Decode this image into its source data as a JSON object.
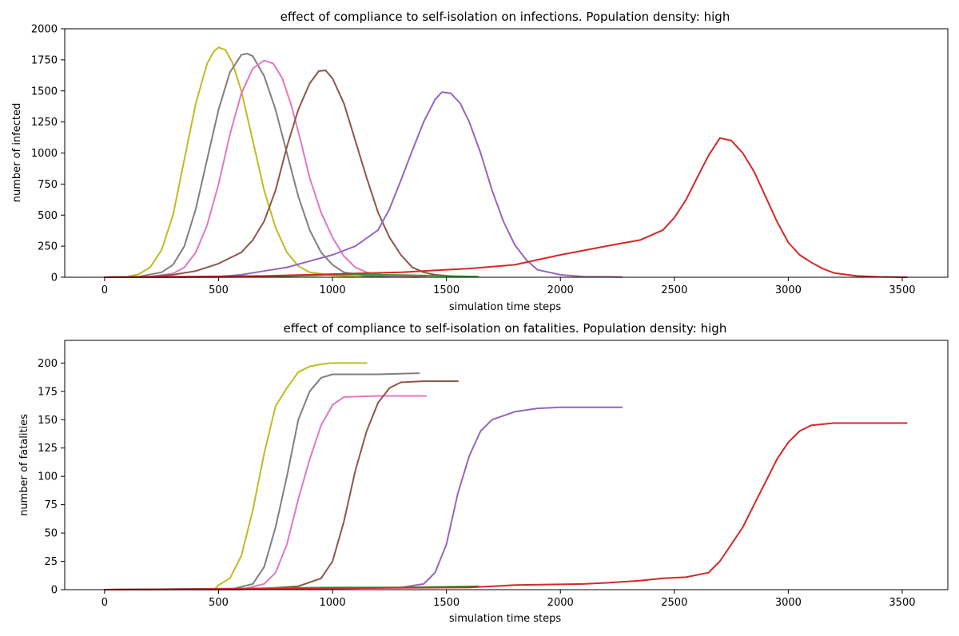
{
  "chart_data": [
    {
      "type": "line",
      "title": "effect of compliance to self-isolation on infections. Population density: high",
      "xlabel": "simulation time steps",
      "ylabel": "number of infected",
      "xlim": [
        -175,
        3700
      ],
      "ylim": [
        0,
        2000
      ],
      "xticks": [
        0,
        500,
        1000,
        1500,
        2000,
        2500,
        3000,
        3500
      ],
      "yticks": [
        0,
        250,
        500,
        750,
        1000,
        1250,
        1500,
        1750,
        2000
      ],
      "grid": false,
      "series": [
        {
          "color": "#bcbd22",
          "points": [
            [
              0,
              0
            ],
            [
              100,
              4
            ],
            [
              150,
              25
            ],
            [
              200,
              80
            ],
            [
              250,
              220
            ],
            [
              300,
              500
            ],
            [
              350,
              950
            ],
            [
              400,
              1400
            ],
            [
              450,
              1720
            ],
            [
              480,
              1820
            ],
            [
              500,
              1850
            ],
            [
              530,
              1830
            ],
            [
              560,
              1730
            ],
            [
              600,
              1500
            ],
            [
              650,
              1100
            ],
            [
              700,
              700
            ],
            [
              750,
              400
            ],
            [
              800,
              200
            ],
            [
              850,
              90
            ],
            [
              900,
              40
            ],
            [
              1000,
              15
            ],
            [
              1100,
              5
            ],
            [
              1150,
              3
            ]
          ]
        },
        {
          "color": "#7f7f7f",
          "points": [
            [
              0,
              0
            ],
            [
              150,
              5
            ],
            [
              250,
              40
            ],
            [
              300,
              100
            ],
            [
              350,
              250
            ],
            [
              400,
              550
            ],
            [
              450,
              950
            ],
            [
              500,
              1350
            ],
            [
              550,
              1650
            ],
            [
              600,
              1790
            ],
            [
              625,
              1800
            ],
            [
              650,
              1780
            ],
            [
              700,
              1620
            ],
            [
              750,
              1350
            ],
            [
              800,
              1000
            ],
            [
              850,
              650
            ],
            [
              900,
              380
            ],
            [
              950,
              200
            ],
            [
              1000,
              100
            ],
            [
              1050,
              40
            ],
            [
              1150,
              10
            ],
            [
              1300,
              3
            ],
            [
              1380,
              2
            ]
          ]
        },
        {
          "color": "#e377c2",
          "points": [
            [
              0,
              0
            ],
            [
              200,
              5
            ],
            [
              300,
              30
            ],
            [
              350,
              80
            ],
            [
              400,
              200
            ],
            [
              450,
              420
            ],
            [
              500,
              750
            ],
            [
              550,
              1150
            ],
            [
              600,
              1480
            ],
            [
              650,
              1680
            ],
            [
              700,
              1745
            ],
            [
              740,
              1720
            ],
            [
              780,
              1600
            ],
            [
              820,
              1380
            ],
            [
              860,
              1100
            ],
            [
              900,
              800
            ],
            [
              950,
              520
            ],
            [
              1000,
              320
            ],
            [
              1050,
              170
            ],
            [
              1100,
              80
            ],
            [
              1150,
              40
            ],
            [
              1250,
              10
            ],
            [
              1410,
              3
            ]
          ]
        },
        {
          "color": "#8c564b",
          "points": [
            [
              0,
              0
            ],
            [
              200,
              5
            ],
            [
              300,
              20
            ],
            [
              400,
              50
            ],
            [
              500,
              110
            ],
            [
              600,
              200
            ],
            [
              650,
              300
            ],
            [
              700,
              450
            ],
            [
              750,
              700
            ],
            [
              800,
              1050
            ],
            [
              850,
              1350
            ],
            [
              900,
              1560
            ],
            [
              940,
              1660
            ],
            [
              970,
              1665
            ],
            [
              1000,
              1600
            ],
            [
              1050,
              1400
            ],
            [
              1100,
              1100
            ],
            [
              1150,
              800
            ],
            [
              1200,
              520
            ],
            [
              1250,
              320
            ],
            [
              1300,
              180
            ],
            [
              1350,
              80
            ],
            [
              1400,
              40
            ],
            [
              1450,
              20
            ],
            [
              1550,
              5
            ]
          ]
        },
        {
          "color": "#9467bd",
          "points": [
            [
              0,
              0
            ],
            [
              400,
              2
            ],
            [
              500,
              5
            ],
            [
              600,
              20
            ],
            [
              700,
              50
            ],
            [
              800,
              80
            ],
            [
              900,
              130
            ],
            [
              1000,
              180
            ],
            [
              1100,
              250
            ],
            [
              1200,
              380
            ],
            [
              1250,
              550
            ],
            [
              1300,
              780
            ],
            [
              1350,
              1020
            ],
            [
              1400,
              1250
            ],
            [
              1450,
              1430
            ],
            [
              1480,
              1490
            ],
            [
              1520,
              1480
            ],
            [
              1560,
              1400
            ],
            [
              1600,
              1250
            ],
            [
              1650,
              1000
            ],
            [
              1700,
              700
            ],
            [
              1750,
              450
            ],
            [
              1800,
              260
            ],
            [
              1850,
              140
            ],
            [
              1900,
              60
            ],
            [
              2000,
              20
            ],
            [
              2100,
              5
            ],
            [
              2270,
              2
            ]
          ]
        },
        {
          "color": "#2ca02c",
          "points": [
            [
              0,
              0
            ],
            [
              500,
              2
            ],
            [
              700,
              5
            ],
            [
              900,
              15
            ],
            [
              1000,
              20
            ],
            [
              1100,
              22
            ],
            [
              1300,
              18
            ],
            [
              1500,
              10
            ],
            [
              1640,
              5
            ]
          ]
        },
        {
          "color": "#d62728",
          "points": [
            [
              0,
              0
            ],
            [
              700,
              10
            ],
            [
              900,
              20
            ],
            [
              1100,
              30
            ],
            [
              1300,
              40
            ],
            [
              1450,
              55
            ],
            [
              1600,
              70
            ],
            [
              1800,
              100
            ],
            [
              2000,
              180
            ],
            [
              2200,
              250
            ],
            [
              2350,
              300
            ],
            [
              2450,
              380
            ],
            [
              2500,
              480
            ],
            [
              2550,
              620
            ],
            [
              2600,
              800
            ],
            [
              2650,
              980
            ],
            [
              2700,
              1120
            ],
            [
              2750,
              1100
            ],
            [
              2800,
              1000
            ],
            [
              2850,
              850
            ],
            [
              2900,
              650
            ],
            [
              2950,
              450
            ],
            [
              3000,
              280
            ],
            [
              3050,
              180
            ],
            [
              3100,
              120
            ],
            [
              3150,
              70
            ],
            [
              3200,
              35
            ],
            [
              3300,
              10
            ],
            [
              3400,
              3
            ],
            [
              3520,
              0
            ]
          ]
        }
      ]
    },
    {
      "type": "line",
      "title": "effect of compliance to self-isolation on fatalities. Population density: high",
      "xlabel": "simulation time steps",
      "ylabel": "number of fatalities",
      "xlim": [
        -175,
        3700
      ],
      "ylim": [
        0,
        220
      ],
      "xticks": [
        0,
        500,
        1000,
        1500,
        2000,
        2500,
        3000,
        3500
      ],
      "yticks": [
        0,
        25,
        50,
        75,
        100,
        125,
        150,
        175,
        200
      ],
      "grid": false,
      "series": [
        {
          "color": "#bcbd22",
          "points": [
            [
              0,
              0
            ],
            [
              480,
              0
            ],
            [
              500,
              4
            ],
            [
              550,
              10
            ],
            [
              600,
              30
            ],
            [
              650,
              70
            ],
            [
              700,
              120
            ],
            [
              750,
              162
            ],
            [
              800,
              178
            ],
            [
              850,
              192
            ],
            [
              900,
              197
            ],
            [
              950,
              199
            ],
            [
              1000,
              200
            ],
            [
              1150,
              200
            ]
          ]
        },
        {
          "color": "#7f7f7f",
          "points": [
            [
              0,
              0
            ],
            [
              550,
              0
            ],
            [
              650,
              5
            ],
            [
              700,
              20
            ],
            [
              750,
              55
            ],
            [
              800,
              100
            ],
            [
              850,
              150
            ],
            [
              900,
              175
            ],
            [
              950,
              187
            ],
            [
              1000,
              190
            ],
            [
              1200,
              190
            ],
            [
              1380,
              191
            ]
          ]
        },
        {
          "color": "#e377c2",
          "points": [
            [
              0,
              0
            ],
            [
              600,
              0
            ],
            [
              700,
              5
            ],
            [
              750,
              15
            ],
            [
              800,
              40
            ],
            [
              850,
              80
            ],
            [
              900,
              115
            ],
            [
              950,
              145
            ],
            [
              1000,
              163
            ],
            [
              1050,
              170
            ],
            [
              1200,
              171
            ],
            [
              1410,
              171
            ]
          ]
        },
        {
          "color": "#8c564b",
          "points": [
            [
              0,
              0
            ],
            [
              700,
              1
            ],
            [
              850,
              3
            ],
            [
              950,
              10
            ],
            [
              1000,
              25
            ],
            [
              1050,
              60
            ],
            [
              1100,
              105
            ],
            [
              1150,
              140
            ],
            [
              1200,
              165
            ],
            [
              1250,
              178
            ],
            [
              1300,
              183
            ],
            [
              1400,
              184
            ],
            [
              1550,
              184
            ]
          ]
        },
        {
          "color": "#9467bd",
          "points": [
            [
              0,
              0
            ],
            [
              1000,
              1
            ],
            [
              1300,
              2
            ],
            [
              1400,
              5
            ],
            [
              1450,
              15
            ],
            [
              1500,
              40
            ],
            [
              1550,
              85
            ],
            [
              1600,
              118
            ],
            [
              1650,
              140
            ],
            [
              1700,
              150
            ],
            [
              1800,
              157
            ],
            [
              1900,
              160
            ],
            [
              2000,
              161
            ],
            [
              2270,
              161
            ]
          ]
        },
        {
          "color": "#2ca02c",
          "points": [
            [
              0,
              0
            ],
            [
              600,
              1
            ],
            [
              1000,
              2
            ],
            [
              1300,
              2
            ],
            [
              1640,
              3
            ]
          ]
        },
        {
          "color": "#d62728",
          "points": [
            [
              0,
              0
            ],
            [
              1600,
              2
            ],
            [
              1800,
              4
            ],
            [
              2100,
              5
            ],
            [
              2200,
              6
            ],
            [
              2350,
              8
            ],
            [
              2450,
              10
            ],
            [
              2550,
              11
            ],
            [
              2650,
              15
            ],
            [
              2700,
              25
            ],
            [
              2750,
              40
            ],
            [
              2800,
              55
            ],
            [
              2850,
              75
            ],
            [
              2900,
              95
            ],
            [
              2950,
              115
            ],
            [
              3000,
              130
            ],
            [
              3050,
              140
            ],
            [
              3100,
              145
            ],
            [
              3200,
              147
            ],
            [
              3520,
              147
            ]
          ]
        }
      ]
    }
  ]
}
